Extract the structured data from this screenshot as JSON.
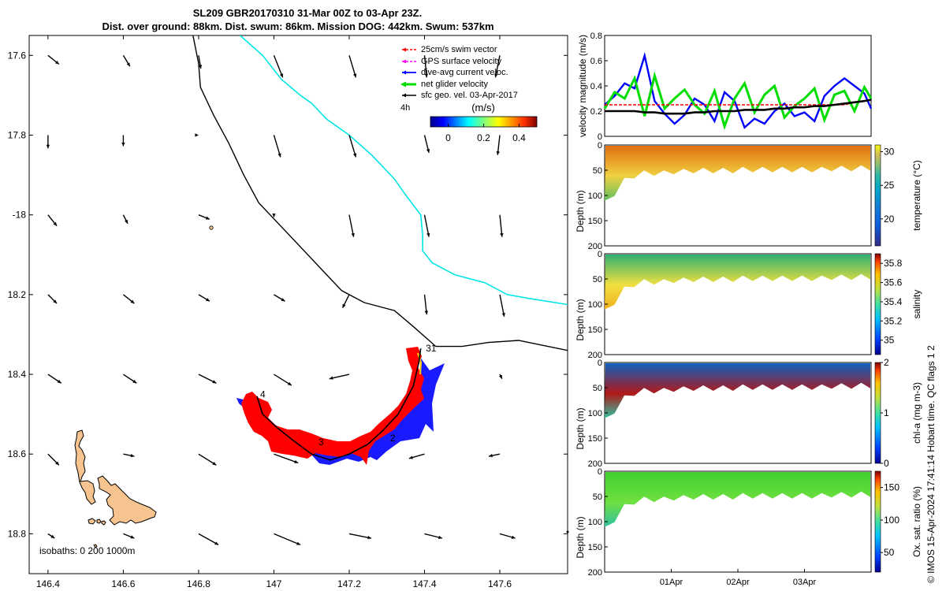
{
  "header": {
    "title_line1": "SL209 GBR20170310 31-Mar 00Z to 03-Apr 23Z.",
    "title_line2": "Dist. over ground: 88km. Dist. swum: 86km. Mission DOG: 442km. Swum: 537km"
  },
  "footer": {
    "credit": "© IMOS 15-Apr-2024 17:41:14 Hobart time. QC flags 1  2"
  },
  "colors": {
    "coast": "#000000",
    "isobath_200": "#000000",
    "isobath_1000": "#00e5e5",
    "island_fill": "#f7c48f",
    "swim_vector": "#ff0000",
    "gps_velocity": "#ff00ff",
    "dive_avg": "#0000ff",
    "net_velocity": "#00dd00",
    "geo_velocity": "#000000"
  },
  "chart_data": [
    {
      "type": "map",
      "xlim": [
        146.35,
        147.78
      ],
      "ylim": [
        -18.9,
        -17.55
      ],
      "x_ticks": [
        146.4,
        146.6,
        146.8,
        147,
        147.2,
        147.4,
        147.6
      ],
      "x_tick_labels": [
        "146.4",
        "146.6",
        "146.8",
        "147",
        "147.2",
        "147.4",
        "147.6"
      ],
      "y_ticks": [
        -17.6,
        -17.8,
        -18,
        -18.2,
        -18.4,
        -18.6,
        -18.8
      ],
      "y_tick_labels": [
        "17.6",
        "17.8",
        "-18",
        "18.2",
        "18.4",
        "18.6",
        "18.8"
      ],
      "legend": {
        "placement": "top-right",
        "entries": [
          {
            "label": "25cm/s swim vector",
            "color_key": "swim_vector",
            "style": "arrow-dashed"
          },
          {
            "label": "GPS surface velocity",
            "color_key": "gps_velocity",
            "style": "arrow-dashed"
          },
          {
            "label": "dive-avg current veloc.",
            "color_key": "dive_avg",
            "style": "arrow"
          },
          {
            "label": "net glider velocity",
            "color_key": "net_velocity",
            "style": "arrow-thick"
          },
          {
            "label": "sfc geo. vel. 03-Apr-2017",
            "color_key": "geo_velocity",
            "style": "arrow"
          }
        ],
        "time_step": "4h"
      },
      "colorbar": {
        "label": "(m/s)",
        "range": [
          -0.1,
          0.5
        ],
        "ticks": [
          0,
          0.2,
          0.4
        ],
        "tick_labels": [
          "0",
          "0.2",
          "0.4"
        ]
      },
      "isobath_label": "isobaths: 0  200  1000m",
      "day_labels": [
        {
          "text": "31",
          "lon": 147.395,
          "lat": -18.335
        },
        {
          "text": "4",
          "lon": 146.955,
          "lat": -18.45
        },
        {
          "text": "3",
          "lon": 147.11,
          "lat": -18.57
        },
        {
          "text": "2",
          "lon": 147.3,
          "lat": -18.56
        }
      ],
      "glider_track": [
        [
          147.39,
          -18.335
        ],
        [
          147.385,
          -18.37
        ],
        [
          147.37,
          -18.43
        ],
        [
          147.33,
          -18.5
        ],
        [
          147.29,
          -18.54
        ],
        [
          147.25,
          -18.575
        ],
        [
          147.2,
          -18.6
        ],
        [
          147.15,
          -18.615
        ],
        [
          147.1,
          -18.6
        ],
        [
          147.05,
          -18.565
        ],
        [
          147.01,
          -18.535
        ],
        [
          146.97,
          -18.5
        ],
        [
          146.955,
          -18.455
        ]
      ],
      "isobath_200_path": [
        [
          146.785,
          -17.55
        ],
        [
          146.8,
          -17.62
        ],
        [
          146.805,
          -17.68
        ],
        [
          146.84,
          -17.75
        ],
        [
          146.88,
          -17.82
        ],
        [
          146.92,
          -17.9
        ],
        [
          146.96,
          -17.97
        ],
        [
          147.02,
          -18.03
        ],
        [
          147.08,
          -18.09
        ],
        [
          147.14,
          -18.15
        ],
        [
          147.18,
          -18.19
        ],
        [
          147.24,
          -18.22
        ],
        [
          147.32,
          -18.24
        ],
        [
          147.37,
          -18.28
        ],
        [
          147.43,
          -18.33
        ],
        [
          147.5,
          -18.33
        ],
        [
          147.57,
          -18.32
        ],
        [
          147.65,
          -18.315
        ],
        [
          147.78,
          -18.34
        ]
      ],
      "isobath_1000_path": [
        [
          146.91,
          -17.55
        ],
        [
          146.97,
          -17.6
        ],
        [
          147.02,
          -17.66
        ],
        [
          147.07,
          -17.7
        ],
        [
          147.1,
          -17.72
        ],
        [
          147.14,
          -17.76
        ],
        [
          147.2,
          -17.8
        ],
        [
          147.26,
          -17.85
        ],
        [
          147.3,
          -17.89
        ],
        [
          147.32,
          -17.91
        ],
        [
          147.35,
          -17.95
        ],
        [
          147.39,
          -18.0
        ],
        [
          147.395,
          -18.05
        ],
        [
          147.395,
          -18.09
        ],
        [
          147.42,
          -18.12
        ],
        [
          147.48,
          -18.15
        ],
        [
          147.56,
          -18.17
        ],
        [
          147.62,
          -18.2
        ],
        [
          147.68,
          -18.21
        ],
        [
          147.78,
          -18.225
        ]
      ],
      "surface_geo_vectors": [
        {
          "lon": 146.4,
          "lat": -17.6,
          "u": 0.05,
          "v": -0.04
        },
        {
          "lon": 146.6,
          "lat": -17.6,
          "u": 0.03,
          "v": -0.05
        },
        {
          "lon": 146.8,
          "lat": -17.6,
          "u": 0.01,
          "v": -0.06
        },
        {
          "lon": 147.0,
          "lat": -17.6,
          "u": 0.04,
          "v": -0.1
        },
        {
          "lon": 147.2,
          "lat": -17.6,
          "u": 0.03,
          "v": -0.1
        },
        {
          "lon": 147.4,
          "lat": -17.6,
          "u": 0.01,
          "v": -0.1
        },
        {
          "lon": 147.6,
          "lat": -17.6,
          "u": -0.02,
          "v": -0.1
        },
        {
          "lon": 146.4,
          "lat": -17.8,
          "u": 0.0,
          "v": -0.06
        },
        {
          "lon": 146.6,
          "lat": -17.8,
          "u": 0.0,
          "v": -0.05
        },
        {
          "lon": 146.8,
          "lat": -17.8,
          "u": 0.0,
          "v": -0.0
        },
        {
          "lon": 147.0,
          "lat": -17.8,
          "u": 0.03,
          "v": -0.1
        },
        {
          "lon": 147.2,
          "lat": -17.8,
          "u": 0.03,
          "v": -0.1
        },
        {
          "lon": 147.4,
          "lat": -17.8,
          "u": 0.02,
          "v": -0.08
        },
        {
          "lon": 147.6,
          "lat": -17.8,
          "u": -0.01,
          "v": -0.09
        },
        {
          "lon": 146.4,
          "lat": -18.0,
          "u": 0.04,
          "v": -0.05
        },
        {
          "lon": 146.6,
          "lat": -18.0,
          "u": 0.02,
          "v": -0.04
        },
        {
          "lon": 146.8,
          "lat": -18.0,
          "u": 0.05,
          "v": -0.02
        },
        {
          "lon": 147.0,
          "lat": -18.0,
          "u": 0.0,
          "v": -0.01
        },
        {
          "lon": 147.2,
          "lat": -18.0,
          "u": 0.02,
          "v": -0.1
        },
        {
          "lon": 147.4,
          "lat": -18.0,
          "u": 0.02,
          "v": -0.1
        },
        {
          "lon": 147.6,
          "lat": -18.0,
          "u": 0.01,
          "v": -0.1
        },
        {
          "lon": 146.4,
          "lat": -18.2,
          "u": 0.04,
          "v": -0.04
        },
        {
          "lon": 146.6,
          "lat": -18.2,
          "u": 0.05,
          "v": -0.04
        },
        {
          "lon": 146.8,
          "lat": -18.2,
          "u": 0.05,
          "v": -0.03
        },
        {
          "lon": 147.0,
          "lat": -18.2,
          "u": 0.05,
          "v": -0.03
        },
        {
          "lon": 147.2,
          "lat": -18.2,
          "u": -0.03,
          "v": -0.06
        },
        {
          "lon": 147.4,
          "lat": -18.2,
          "u": 0.01,
          "v": -0.09
        },
        {
          "lon": 147.6,
          "lat": -18.2,
          "u": 0.02,
          "v": -0.1
        },
        {
          "lon": 146.4,
          "lat": -18.4,
          "u": 0.06,
          "v": -0.04
        },
        {
          "lon": 146.6,
          "lat": -18.4,
          "u": 0.06,
          "v": -0.04
        },
        {
          "lon": 146.8,
          "lat": -18.4,
          "u": 0.08,
          "v": -0.04
        },
        {
          "lon": 147.0,
          "lat": -18.4,
          "u": 0.08,
          "v": -0.05
        },
        {
          "lon": 147.2,
          "lat": -18.4,
          "u": -0.09,
          "v": -0.02
        },
        {
          "lon": 147.6,
          "lat": -18.4,
          "u": 0.01,
          "v": -0.02
        },
        {
          "lon": 146.4,
          "lat": -18.6,
          "u": 0.05,
          "v": -0.05
        },
        {
          "lon": 146.6,
          "lat": -18.6,
          "u": 0.05,
          "v": -0.01
        },
        {
          "lon": 146.8,
          "lat": -18.6,
          "u": 0.08,
          "v": -0.05
        },
        {
          "lon": 147.0,
          "lat": -18.6,
          "u": 0.11,
          "v": -0.04
        },
        {
          "lon": 147.4,
          "lat": -18.6,
          "u": -0.07,
          "v": -0.02
        },
        {
          "lon": 147.6,
          "lat": -18.6,
          "u": -0.05,
          "v": -0.01
        },
        {
          "lon": 146.4,
          "lat": -18.8,
          "u": 0.03,
          "v": -0.02
        },
        {
          "lon": 146.6,
          "lat": -18.8,
          "u": 0.05,
          "v": -0.02
        },
        {
          "lon": 146.8,
          "lat": -18.8,
          "u": 0.09,
          "v": -0.05
        },
        {
          "lon": 147.0,
          "lat": -18.8,
          "u": 0.12,
          "v": -0.05
        },
        {
          "lon": 147.2,
          "lat": -18.8,
          "u": 0.1,
          "v": -0.02
        },
        {
          "lon": 147.4,
          "lat": -18.8,
          "u": 0.08,
          "v": -0.02
        },
        {
          "lon": 147.6,
          "lat": -18.8,
          "u": 0.07,
          "v": -0.02
        }
      ]
    },
    {
      "type": "line",
      "ylabel": "velocity magnitude (m/s)",
      "ylim": [
        0,
        0.8
      ],
      "y_ticks": [
        0,
        0.2,
        0.4,
        0.6,
        0.8
      ],
      "y_tick_labels": [
        "0",
        "0.2",
        "0.4",
        "0.6",
        "0.8"
      ],
      "x": [
        0,
        0.15,
        0.3,
        0.45,
        0.6,
        0.75,
        0.9,
        1.05,
        1.2,
        1.35,
        1.5,
        1.65,
        1.8,
        1.95,
        2.1,
        2.25,
        2.4,
        2.55,
        2.7,
        2.85,
        3.0,
        3.15,
        3.3,
        3.45,
        3.6,
        3.75,
        3.9,
        4.0
      ],
      "series": [
        {
          "color_key": "dive_avg",
          "values": [
            0.25,
            0.32,
            0.42,
            0.38,
            0.64,
            0.28,
            0.18,
            0.1,
            0.17,
            0.3,
            0.25,
            0.12,
            0.35,
            0.28,
            0.07,
            0.14,
            0.1,
            0.2,
            0.26,
            0.16,
            0.19,
            0.12,
            0.32,
            0.4,
            0.46,
            0.4,
            0.34,
            0.22
          ]
        },
        {
          "color_key": "net_velocity",
          "values": [
            0.22,
            0.35,
            0.3,
            0.46,
            0.16,
            0.48,
            0.22,
            0.3,
            0.37,
            0.25,
            0.18,
            0.36,
            0.08,
            0.3,
            0.42,
            0.19,
            0.33,
            0.4,
            0.15,
            0.24,
            0.3,
            0.38,
            0.13,
            0.33,
            0.36,
            0.2,
            0.39,
            0.3
          ]
        },
        {
          "color_key": "swim_vector",
          "values": [
            0.25,
            0.25,
            0.25,
            0.25,
            0.25,
            0.25,
            0.25,
            0.25,
            0.25,
            0.25,
            0.25,
            0.25,
            0.25,
            0.25,
            0.25,
            0.25,
            0.25,
            0.25,
            0.25,
            0.25,
            0.25,
            0.25,
            0.25,
            0.25,
            0.25,
            0.27,
            0.28,
            0.29
          ]
        },
        {
          "color_key": "geo_velocity",
          "values": [
            0.2,
            0.2,
            0.2,
            0.2,
            0.19,
            0.19,
            0.18,
            0.18,
            0.18,
            0.19,
            0.19,
            0.2,
            0.2,
            0.2,
            0.21,
            0.21,
            0.21,
            0.22,
            0.22,
            0.23,
            0.23,
            0.24,
            0.24,
            0.25,
            0.26,
            0.27,
            0.28,
            0.29
          ]
        }
      ]
    },
    {
      "type": "heatmap",
      "ylabel": "Depth (m)",
      "ylim": [
        0,
        200
      ],
      "y_ticks": [
        0,
        50,
        100,
        150,
        200
      ],
      "y_tick_labels": [
        "0",
        "50",
        "100",
        "150",
        "200"
      ],
      "colorbar_label": "temperature (°C)",
      "colorbar_range": [
        16,
        31
      ],
      "colorbar_ticks": [
        20,
        25,
        30
      ],
      "colorbar_tick_labels": [
        "20",
        "25",
        "30"
      ],
      "surface_color": "#e07010",
      "deep_color": "#f0d040",
      "bottom_color": "#60c060",
      "max_depth_profile": [
        115,
        95,
        70,
        60,
        55,
        55,
        55,
        52,
        52,
        50,
        50,
        50,
        50,
        50,
        48,
        48,
        48,
        48,
        48,
        48,
        48,
        48,
        48,
        46,
        46,
        46,
        45,
        45
      ]
    },
    {
      "type": "heatmap",
      "ylabel": "Depth (m)",
      "ylim": [
        0,
        200
      ],
      "y_ticks": [
        0,
        50,
        100,
        150,
        200
      ],
      "y_tick_labels": [
        "0",
        "50",
        "100",
        "150",
        "200"
      ],
      "colorbar_label": "salinity",
      "colorbar_range": [
        34.85,
        35.9
      ],
      "colorbar_ticks": [
        35,
        35.2,
        35.4,
        35.6,
        35.8
      ],
      "colorbar_tick_labels": [
        "35",
        "35.2",
        "35.4",
        "35.6",
        "35.8"
      ],
      "surface_color": "#30b070",
      "deep_color": "#f0e040",
      "bottom_color": "#f0b020",
      "max_depth_profile": [
        115,
        95,
        70,
        60,
        55,
        55,
        55,
        52,
        52,
        50,
        50,
        50,
        50,
        50,
        48,
        48,
        48,
        48,
        48,
        48,
        48,
        48,
        48,
        46,
        46,
        46,
        45,
        45
      ]
    },
    {
      "type": "heatmap",
      "ylabel": "Depth (m)",
      "ylim": [
        0,
        200
      ],
      "y_ticks": [
        0,
        50,
        100,
        150,
        200
      ],
      "y_tick_labels": [
        "0",
        "50",
        "100",
        "150",
        "200"
      ],
      "colorbar_label": "chl-a (mg m-3)",
      "colorbar_range": [
        0,
        2
      ],
      "colorbar_ticks": [
        0,
        1,
        2
      ],
      "colorbar_tick_labels": [
        "0",
        "1",
        "2"
      ],
      "surface_color": "#1060c0",
      "deep_color": "#b01818",
      "bottom_color": "#30c0a0",
      "max_depth_profile": [
        115,
        95,
        70,
        60,
        55,
        55,
        55,
        52,
        52,
        50,
        50,
        50,
        50,
        50,
        48,
        48,
        48,
        48,
        48,
        48,
        48,
        48,
        48,
        46,
        46,
        46,
        45,
        45
      ]
    },
    {
      "type": "heatmap",
      "ylabel": "Depth (m)",
      "ylim": [
        0,
        200
      ],
      "y_ticks": [
        0,
        50,
        100,
        150,
        200
      ],
      "y_tick_labels": [
        "0",
        "50",
        "100",
        "150",
        "200"
      ],
      "x_ticks": [
        1,
        2,
        3
      ],
      "x_tick_labels": [
        "01Apr",
        "02Apr",
        "03Apr"
      ],
      "colorbar_label": "Ox. sat. ratio (%)",
      "colorbar_range": [
        20,
        175
      ],
      "colorbar_ticks": [
        50,
        100,
        150
      ],
      "colorbar_tick_labels": [
        "50",
        "100",
        "150"
      ],
      "surface_color": "#40d030",
      "deep_color": "#70e040",
      "bottom_color": "#30c0a0",
      "max_depth_profile": [
        115,
        95,
        70,
        60,
        55,
        55,
        55,
        52,
        52,
        50,
        50,
        50,
        50,
        50,
        48,
        48,
        48,
        48,
        48,
        48,
        48,
        48,
        48,
        46,
        46,
        46,
        45,
        45
      ]
    }
  ]
}
